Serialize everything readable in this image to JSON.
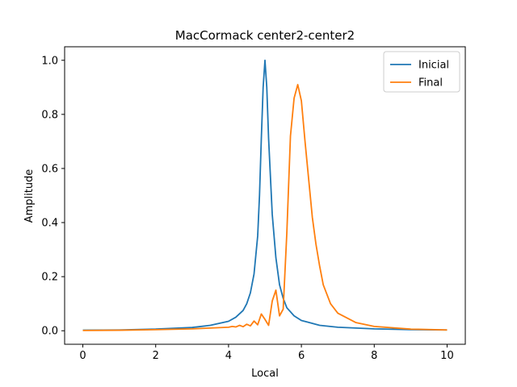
{
  "chart_data": {
    "type": "line",
    "title": "MacCormack center2-center2",
    "xlabel": "Local",
    "ylabel": "Amplitude",
    "xlim": [
      -0.5,
      10.5
    ],
    "ylim": [
      -0.05,
      1.05
    ],
    "xticks": [
      0,
      2,
      4,
      6,
      8,
      10
    ],
    "yticks": [
      0.0,
      0.2,
      0.4,
      0.6,
      0.8,
      1.0
    ],
    "grid": false,
    "legend_position": "top-right",
    "series": [
      {
        "name": "Inicial",
        "color": "#1f77b4",
        "x": [
          0.0,
          1.0,
          2.0,
          3.0,
          3.5,
          4.0,
          4.2,
          4.4,
          4.5,
          4.6,
          4.7,
          4.8,
          4.85,
          4.9,
          4.95,
          5.0,
          5.05,
          5.1,
          5.2,
          5.3,
          5.4,
          5.5,
          5.6,
          5.8,
          6.0,
          6.5,
          7.0,
          8.0,
          9.0,
          10.0
        ],
        "y": [
          0.002,
          0.003,
          0.006,
          0.012,
          0.02,
          0.035,
          0.05,
          0.075,
          0.1,
          0.14,
          0.21,
          0.35,
          0.5,
          0.71,
          0.9,
          1.0,
          0.9,
          0.71,
          0.43,
          0.27,
          0.17,
          0.12,
          0.085,
          0.055,
          0.038,
          0.02,
          0.013,
          0.007,
          0.004,
          0.003
        ]
      },
      {
        "name": "Final",
        "color": "#ff7f0e",
        "x": [
          0.0,
          1.0,
          2.0,
          3.0,
          3.5,
          4.0,
          4.1,
          4.2,
          4.3,
          4.4,
          4.5,
          4.6,
          4.7,
          4.8,
          4.9,
          5.0,
          5.1,
          5.2,
          5.3,
          5.4,
          5.5,
          5.6,
          5.7,
          5.8,
          5.9,
          6.0,
          6.1,
          6.2,
          6.3,
          6.4,
          6.5,
          6.6,
          6.8,
          7.0,
          7.5,
          8.0,
          9.0,
          10.0
        ],
        "y": [
          0.001,
          0.002,
          0.004,
          0.007,
          0.01,
          0.013,
          0.016,
          0.014,
          0.02,
          0.015,
          0.024,
          0.018,
          0.036,
          0.022,
          0.062,
          0.042,
          0.02,
          0.11,
          0.15,
          0.055,
          0.08,
          0.36,
          0.72,
          0.86,
          0.91,
          0.85,
          0.7,
          0.56,
          0.42,
          0.32,
          0.24,
          0.17,
          0.1,
          0.065,
          0.03,
          0.016,
          0.006,
          0.003
        ]
      }
    ]
  }
}
